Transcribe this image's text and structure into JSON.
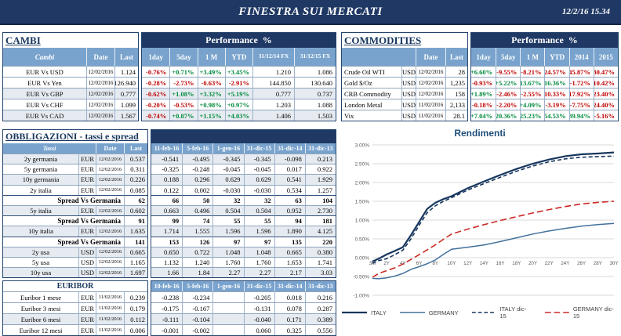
{
  "header": {
    "title": "FINESTRA SUI MERCATI",
    "datetime": "12/2/16 15.34"
  },
  "colors": {
    "banner": "#1F3864",
    "header_blue": "#79A3CD",
    "stripe": "#E6EBF1",
    "positive": "#008A3C",
    "negative": "#C00000"
  },
  "cambi": {
    "title": "CAMBI",
    "perf_label": "Performance  %",
    "headers": {
      "name": "Cambi",
      "date": "Date",
      "last": "Last",
      "c0": "1day",
      "c1": "5day",
      "c2": "1 M",
      "c3": "YTD",
      "c4": "31/12/14 FX",
      "c5": "31/12/15  FX"
    },
    "rows": [
      {
        "cls": "",
        "label": "EUR Vs USD",
        "date": "12/02/2016",
        "last": "1.124",
        "v0": "-0.76%",
        "v1": "+0.71%",
        "v2": "+3.49%",
        "v3": "+3.45%",
        "v4": "1.210",
        "v5": "1.086"
      },
      {
        "cls": "",
        "label": "EUR Vs Yen",
        "date": "12/02/2016",
        "last": "126.940",
        "v0": "-0.28%",
        "v1": "-2.73%",
        "v2": "-0.63%",
        "v3": "-2.91%",
        "v4": "144.850",
        "v5": "130.640"
      },
      {
        "cls": "light",
        "label": "EUR Vs GBP",
        "date": "12/02/2016",
        "last": "0.777",
        "v0": "-0.62%",
        "v1": "+1.08%",
        "v2": "+3.32%",
        "v3": "+5.19%",
        "v4": "0.777",
        "v5": "0.737"
      },
      {
        "cls": "",
        "label": "EUR Vs CHF",
        "date": "12/02/2016",
        "last": "1.099",
        "v0": "-0.20%",
        "v1": "-0.53%",
        "v2": "+0.98%",
        "v3": "+0.97%",
        "v4": "1.203",
        "v5": "1.088"
      },
      {
        "cls": "light",
        "label": "EUR Vs CAD",
        "date": "12/02/2016",
        "last": "1.567",
        "v0": "-0.74%",
        "v1": "+0.87%",
        "v2": "+1.15%",
        "v3": "+4.03%",
        "v4": "1.406",
        "v5": "1.503"
      }
    ]
  },
  "commodities": {
    "title": "COMMODITIES",
    "perf_label": "Performance  %",
    "headers": {
      "date": "Date",
      "last": "Last",
      "c0": "1day",
      "c1": "5day",
      "c2": "1 M",
      "c3": "YTD",
      "c4": "2014",
      "c5": "2015"
    },
    "rows": [
      {
        "cls": "",
        "label": "Crude Oil WTI",
        "ccy": "USD",
        "date": "12/02/2016",
        "last": "28",
        "v0": "+6.60%",
        "v1": "-9.55%",
        "v2": "-8.21%",
        "v3": "-24.57%",
        "v4": "-45.87%",
        "v5": "-30.47%"
      },
      {
        "cls": "",
        "label": "Gold $/Oz",
        "ccy": "USD",
        "date": "12/02/2016",
        "last": "1,235",
        "v0": "-0.93%",
        "v1": "+5.22%",
        "v2": "+13.67%",
        "v3": "+16.36%",
        "v4": "-1.72%",
        "v5": "-10.42%"
      },
      {
        "cls": "",
        "label": "CRB Commodity",
        "ccy": "USD",
        "date": "12/02/2016",
        "last": "158",
        "v0": "+1.89%",
        "v1": "-2.46%",
        "v2": "-2.55%",
        "v3": "-10.33%",
        "v4": "-17.92%",
        "v5": "-23.40%"
      },
      {
        "cls": "",
        "label": "London Metal",
        "ccy": "USD",
        "date": "11/02/2016",
        "last": "2,133",
        "v0": "-0.18%",
        "v1": "-2.20%",
        "v2": "+4.09%",
        "v3": "-3.19%",
        "v4": "-7.75%",
        "v5": "-24.40%"
      },
      {
        "cls": "",
        "label": "Vix",
        "ccy": "USD",
        "date": "11/02/2016",
        "last": "28.1",
        "v0": "+7.04%",
        "v1": "+20.36%",
        "v2": "+25.23%",
        "v3": "+54.53%",
        "v4": "+39.94%",
        "v5": "-5.16%"
      }
    ]
  },
  "obbligazioni": {
    "title": "OBBLIGAZIONI - tassi e spread",
    "headers": {
      "name": "Tassi",
      "date": "Date",
      "last": "Last",
      "c0": "11-feb-16",
      "c1": "5-feb-16",
      "c2": "1-gen-16",
      "c3": "31-dic-15",
      "c4": "31-dic-14",
      "c5": "31-dic-13"
    },
    "rows": [
      {
        "cls": "light",
        "label": "2y germania",
        "ccy": "EUR",
        "date": "12/02/2016",
        "last": "-    0.537",
        "v0": "-0.541",
        "v1": "-0.495",
        "v2": "-0.345",
        "v3": "-0.345",
        "v4": "-0.098",
        "v5": "0.213"
      },
      {
        "cls": "",
        "label": "5y germania",
        "ccy": "EUR",
        "date": "12/02/2016",
        "last": "-    0.311",
        "v0": "-0.325",
        "v1": "-0.248",
        "v2": "-0.045",
        "v3": "-0.045",
        "v4": "0.017",
        "v5": "0.922"
      },
      {
        "cls": "light",
        "label": "10y germania",
        "ccy": "EUR",
        "date": "12/02/2016",
        "last": "0.226",
        "v0": "0.188",
        "v1": "0.296",
        "v2": "0.629",
        "v3": "0.629",
        "v4": "0.541",
        "v5": "1.929"
      },
      {
        "cls": "",
        "label": "2y italia",
        "ccy": "EUR",
        "date": "12/02/2016",
        "last": "0.085",
        "v0": "0.122",
        "v1": "0.002",
        "v2": "-0.030",
        "v3": "-0.030",
        "v4": "0.534",
        "v5": "1.257"
      },
      {
        "cls": "spread",
        "label": "Spread Vs Germania",
        "ccy": "",
        "date": "",
        "last": "62",
        "v0": "66",
        "v1": "50",
        "v2": "32",
        "v3": "32",
        "v4": "63",
        "v5": "104"
      },
      {
        "cls": "light",
        "label": "5y italia",
        "ccy": "EUR",
        "date": "12/02/2016",
        "last": "0.602",
        "v0": "0.663",
        "v1": "0.496",
        "v2": "0.504",
        "v3": "0.504",
        "v4": "0.952",
        "v5": "2.730"
      },
      {
        "cls": "spread",
        "label": "Spread Vs Germania",
        "ccy": "",
        "date": "",
        "last": "91",
        "v0": "99",
        "v1": "74",
        "v2": "55",
        "v3": "55",
        "v4": "94",
        "v5": "181"
      },
      {
        "cls": "light",
        "label": "10y italia",
        "ccy": "EUR",
        "date": "12/02/2016",
        "last": "1.635",
        "v0": "1.714",
        "v1": "1.555",
        "v2": "1.596",
        "v3": "1.596",
        "v4": "1.890",
        "v5": "4.125"
      },
      {
        "cls": "spread",
        "label": "Spread Vs Germania",
        "ccy": "",
        "date": "",
        "last": "141",
        "v0": "153",
        "v1": "126",
        "v2": "97",
        "v3": "97",
        "v4": "135",
        "v5": "220"
      },
      {
        "cls": "light",
        "label": "2y usa",
        "ccy": "USD",
        "date": "12/02/2016",
        "last": "0.665",
        "v0": "0.650",
        "v1": "0.722",
        "v2": "1.048",
        "v3": "1.048",
        "v4": "0.665",
        "v5": "0.380"
      },
      {
        "cls": "",
        "label": "5y usa",
        "ccy": "USD",
        "date": "12/02/2016",
        "last": "1.165",
        "v0": "1.132",
        "v1": "1.240",
        "v2": "1.760",
        "v3": "1.760",
        "v4": "1.653",
        "v5": "1.741"
      },
      {
        "cls": "light",
        "label": "10y usa",
        "ccy": "USD",
        "date": "12/02/2016",
        "last": "1.697",
        "v0": "1.66",
        "v1": "1.84",
        "v2": "2.27",
        "v3": "2.27",
        "v4": "2.17",
        "v5": "3.03"
      }
    ]
  },
  "euribor": {
    "title": "EURIBOR",
    "headers": {
      "c0": "10-feb-16",
      "c1": "5-feb-16",
      "c2": "1-gen-16",
      "c3": "31-dic-15",
      "c4": "31-dic-14",
      "c5": "31-dic-13"
    },
    "rows": [
      {
        "cls": "",
        "label": "Euribor 1 mese",
        "ccy": "EUR",
        "date": "11/02/2016",
        "last": "-    0.239",
        "v0": "-0.238",
        "v1": "-0.234",
        "v2": "",
        "v3": "-0.205",
        "v4": "0.018",
        "v5": "0.216"
      },
      {
        "cls": "",
        "label": "Euribor 3 mesi",
        "ccy": "EUR",
        "date": "11/02/2016",
        "last": "-    0.179",
        "v0": "-0.175",
        "v1": "-0.167",
        "v2": "",
        "v3": "-0.131",
        "v4": "0.078",
        "v5": "0.287"
      },
      {
        "cls": "light",
        "label": "Euribor 6 mesi",
        "ccy": "EUR",
        "date": "11/02/2016",
        "last": "-    0.112",
        "v0": "-0.111",
        "v1": "-0.104",
        "v2": "",
        "v3": "-0.040",
        "v4": "0.171",
        "v5": "0.389"
      },
      {
        "cls": "",
        "label": "Euribor 12 mesi",
        "ccy": "EUR",
        "date": "11/02/2016",
        "last": "-    0.006",
        "v0": "-0.001",
        "v1": "-0.002",
        "v2": "",
        "v3": "0.060",
        "v4": "0.325",
        "v5": "0.556"
      }
    ]
  },
  "chart_data": {
    "type": "line",
    "title": "Rendimenti",
    "xlabel": "",
    "ylabel": "",
    "grid": true,
    "legend_position": "bottom",
    "ylim": [
      -1.0,
      3.0
    ],
    "y_ticks": [
      "3.00%",
      "2.50%",
      "2.00%",
      "1.50%",
      "1.00%",
      "0.50%",
      "0.00%",
      "-0.50%",
      "-1.00%"
    ],
    "y_tick_values": [
      3,
      2.5,
      2,
      1.5,
      1,
      0.5,
      0,
      -0.5,
      -1
    ],
    "x_unit": "years_to_maturity",
    "x": [
      0.25,
      1,
      2,
      3,
      4,
      5,
      6,
      7,
      8,
      9,
      10,
      12,
      14,
      16,
      18,
      20,
      22,
      24,
      26,
      28,
      30
    ],
    "x_tick_labels": [
      "3M",
      "2Y",
      "4Y",
      "6Y",
      "8Y",
      "10Y",
      "12Y",
      "14Y",
      "16Y",
      "18Y",
      "20Y",
      "22Y",
      "24Y",
      "26Y",
      "28Y",
      "30Y"
    ],
    "x_tick_years": [
      0.25,
      2,
      4,
      6,
      8,
      10,
      12,
      14,
      16,
      18,
      20,
      22,
      24,
      26,
      28,
      30
    ],
    "series": [
      {
        "name": "ITALY",
        "color": "#17365D",
        "dash": "none",
        "width": 2.2,
        "values": [
          -0.1,
          -0.03,
          0.085,
          0.18,
          0.28,
          0.602,
          0.95,
          1.3,
          1.46,
          1.56,
          1.635,
          1.85,
          2.03,
          2.2,
          2.36,
          2.5,
          2.61,
          2.7,
          2.75,
          2.77,
          2.8
        ]
      },
      {
        "name": "GERMANY",
        "color": "#41719C",
        "dash": "none",
        "width": 1.5,
        "values": [
          -0.55,
          -0.56,
          -0.537,
          -0.49,
          -0.42,
          -0.311,
          -0.24,
          -0.16,
          -0.06,
          0.09,
          0.226,
          0.28,
          0.34,
          0.43,
          0.53,
          0.63,
          0.71,
          0.78,
          0.84,
          0.88,
          0.91
        ]
      },
      {
        "name": "ITALY dic-15",
        "color": "#17365D",
        "dash": "5 3",
        "width": 1.6,
        "values": [
          -0.15,
          -0.08,
          -0.03,
          0.08,
          0.2,
          0.504,
          0.86,
          1.2,
          1.38,
          1.5,
          1.596,
          1.8,
          1.97,
          2.14,
          2.3,
          2.44,
          2.55,
          2.63,
          2.67,
          2.69,
          2.7
        ]
      },
      {
        "name": "GERMANY dic-15",
        "color": "#CC2A25",
        "dash": "8 4",
        "width": 1.6,
        "values": [
          -0.52,
          -0.42,
          -0.345,
          -0.27,
          -0.17,
          -0.045,
          0.08,
          0.21,
          0.34,
          0.49,
          0.629,
          0.76,
          0.88,
          0.99,
          1.09,
          1.19,
          1.28,
          1.36,
          1.43,
          1.47,
          1.5
        ]
      }
    ]
  }
}
